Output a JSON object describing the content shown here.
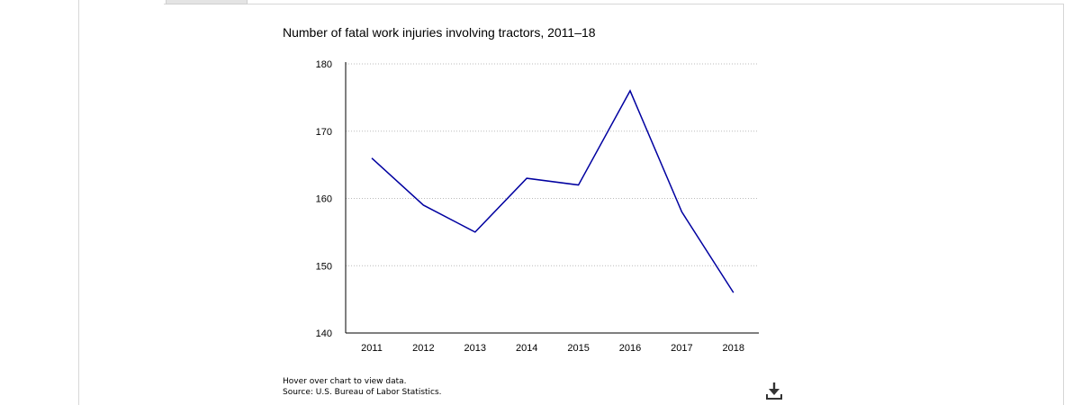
{
  "chart_data": {
    "type": "line",
    "title": "Number of fatal work injuries involving tractors, 2011–18",
    "xlabel": "",
    "ylabel": "",
    "categories": [
      "2011",
      "2012",
      "2013",
      "2014",
      "2015",
      "2016",
      "2017",
      "2018"
    ],
    "series": [
      {
        "values": [
          166,
          159,
          155,
          163,
          162,
          176,
          158,
          146
        ],
        "color": "#0000a0"
      }
    ],
    "ylim": [
      140,
      180
    ],
    "yticks": [
      140,
      150,
      160,
      170,
      180
    ],
    "ytick_labels": [
      "140",
      "150",
      "160",
      "170",
      "180"
    ],
    "grid": true,
    "legend": "none"
  },
  "notes": {
    "hover": "Hover over chart to view data.",
    "source": "Source: U.S. Bureau of Labor Statistics."
  },
  "icons": {
    "download": "download-icon"
  }
}
